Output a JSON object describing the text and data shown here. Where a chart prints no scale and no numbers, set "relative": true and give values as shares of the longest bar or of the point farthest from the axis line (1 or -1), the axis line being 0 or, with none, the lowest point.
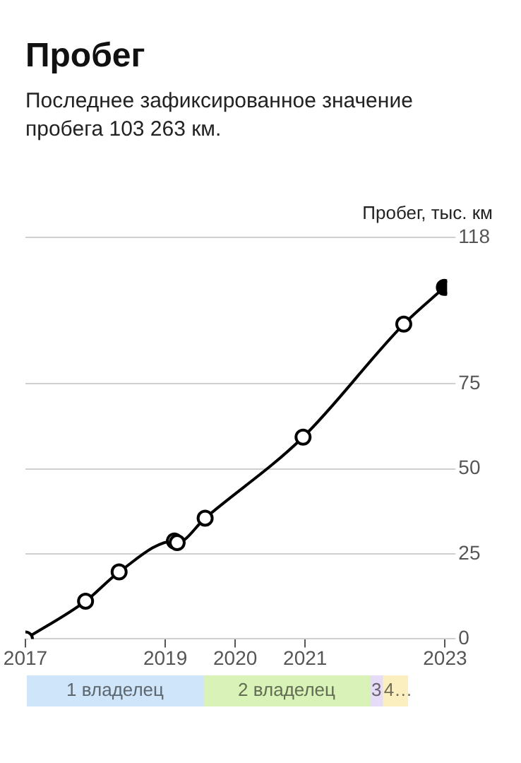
{
  "chart_data": [
    {
      "type": "line",
      "title": "Пробег",
      "subtitle": "Последнее зафиксированное значение пробега 103 263 км.",
      "ylabel": "Пробег, тыс. км",
      "x": [
        2017,
        2017.86,
        2018.34,
        2019.13,
        2019.17,
        2019.57,
        2020.97,
        2022.41,
        2022.99
      ],
      "series": [
        {
          "color": "#000000",
          "colors": [
            "#ffffff",
            "#ffffff",
            "#ffffff",
            "#ffffff",
            "#ffffff",
            "#ffffff",
            "#ffffff",
            "#ffffff",
            "#000000"
          ],
          "values": [
            0,
            11.1,
            19.7,
            28.8,
            28.3,
            35.5,
            59.3,
            92.5,
            103.3
          ]
        }
      ],
      "xlim": [
        2017,
        2023.03
      ],
      "xticks": [
        2017,
        2019,
        2020,
        2021,
        2023
      ],
      "ylim": [
        0,
        118
      ],
      "yticks": [
        0,
        25,
        50,
        75,
        118
      ],
      "grid": "y",
      "legend": false,
      "marker": "circle"
    },
    {
      "type": "bar",
      "orientation": "horizontal",
      "stacked": true,
      "relative": true,
      "categories": [
        null
      ],
      "legend": false,
      "series": [
        {
          "name": "1 владелец",
          "color": "#cfe5f9",
          "values": [
            0.463
          ]
        },
        {
          "name": "2 владелец",
          "color": "#d9f2b8",
          "values": [
            0.437
          ]
        },
        {
          "name": "3",
          "color": "#e6dcf7",
          "values": [
            0.033
          ]
        },
        {
          "name": "4…",
          "color": "#fbefc0",
          "values": [
            0.067
          ]
        }
      ]
    }
  ]
}
